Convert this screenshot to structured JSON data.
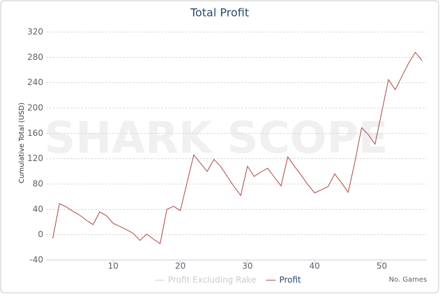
{
  "chart_data": {
    "type": "line",
    "title": "Total Profit",
    "watermark": "SHARK SCOPE",
    "x_label": "No. Games",
    "y_label": "Cumulative Total (USD)",
    "x": [
      1,
      2,
      3,
      4,
      5,
      6,
      7,
      8,
      9,
      10,
      11,
      12,
      13,
      14,
      15,
      16,
      17,
      18,
      19,
      20,
      21,
      22,
      23,
      24,
      25,
      26,
      27,
      28,
      29,
      30,
      31,
      32,
      33,
      34,
      35,
      36,
      37,
      38,
      39,
      40,
      41,
      42,
      43,
      44,
      45,
      46,
      47,
      48,
      49,
      50,
      51,
      52,
      53,
      54,
      55,
      56
    ],
    "series": [
      {
        "name": "Profit Excluding Rake",
        "color": "#cccccc",
        "hidden": true
      },
      {
        "name": "Profit",
        "color": "#aa4643",
        "values": [
          -6,
          49,
          44,
          37,
          31,
          23,
          16,
          36,
          30,
          18,
          13,
          8,
          2,
          -9,
          1,
          -7,
          -14,
          40,
          45,
          38,
          82,
          126,
          113,
          100,
          119,
          108,
          92,
          76,
          62,
          108,
          92,
          99,
          105,
          91,
          77,
          123,
          108,
          94,
          79,
          66,
          71,
          76,
          96,
          82,
          67,
          115,
          169,
          158,
          143,
          194,
          245,
          229,
          250,
          271,
          288,
          275
        ]
      }
    ],
    "xlim": [
      0,
      56.7
    ],
    "xticks": [
      10,
      20,
      30,
      40,
      50
    ],
    "ylim": [
      -40,
      320
    ],
    "yticks": [
      -40,
      0,
      40,
      80,
      120,
      160,
      200,
      240,
      280,
      320
    ],
    "grid": true
  }
}
